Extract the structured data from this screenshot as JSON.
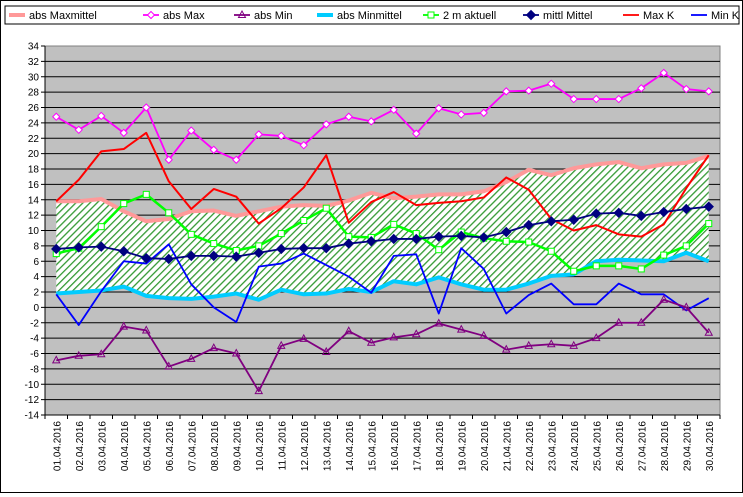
{
  "chart_data": {
    "type": "line",
    "title": "",
    "xlabel": "",
    "ylabel": "",
    "ylim": [
      -14,
      34
    ],
    "ytick_step": 2,
    "grid": true,
    "legend_position": "top",
    "plot_background": "#c0c0c0",
    "categories": [
      "01.04.2016",
      "02.04.2016",
      "03.04.2016",
      "04.04.2016",
      "05.04.2016",
      "06.04.2016",
      "07.04.2016",
      "08.04.2016",
      "09.04.2016",
      "10.04.2016",
      "11.04.2016",
      "12.04.2016",
      "13.04.2016",
      "14.04.2016",
      "15.04.2016",
      "16.04.2016",
      "17.04.2016",
      "18.04.2016",
      "19.04.2016",
      "20.04.2016",
      "21.04.2016",
      "22.04.2016",
      "23.04.2016",
      "24.04.2016",
      "25.04.2016",
      "26.04.2016",
      "27.04.2016",
      "28.04.2016",
      "29.04.2016",
      "30.04.2016"
    ],
    "series": [
      {
        "name": "abs Maxmittel",
        "color": "#ff9999",
        "style": "thick",
        "marker": "none",
        "values": [
          13.8,
          13.8,
          14.1,
          12.5,
          11.2,
          11.5,
          12.5,
          12.6,
          11.9,
          12.5,
          13.1,
          13.3,
          13.2,
          13.9,
          14.9,
          14.2,
          14.4,
          14.7,
          14.7,
          15.1,
          16.3,
          17.9,
          17.2,
          18.1,
          18.6,
          18.9,
          18.1,
          18.6,
          18.8,
          19.7
        ]
      },
      {
        "name": "abs Max",
        "color": "#ff00ff",
        "style": "line",
        "marker": "diamond-open",
        "values": [
          24.8,
          23.1,
          24.9,
          22.7,
          26.0,
          19.2,
          23.0,
          20.5,
          19.2,
          22.5,
          22.3,
          21.1,
          23.8,
          24.8,
          24.2,
          25.7,
          22.6,
          25.9,
          25.1,
          25.3,
          28.1,
          28.2,
          29.1,
          27.1,
          27.1,
          27.1,
          28.5,
          30.5,
          28.4,
          28.1
        ]
      },
      {
        "name": "abs Min",
        "color": "#800080",
        "style": "line",
        "marker": "triangle-open",
        "values": [
          -6.9,
          -6.3,
          -6.1,
          -2.5,
          -3.0,
          -7.7,
          -6.7,
          -5.3,
          -6.0,
          -10.9,
          -5.0,
          -4.1,
          -5.8,
          -3.1,
          -4.6,
          -3.9,
          -3.5,
          -2.1,
          -2.9,
          -3.7,
          -5.5,
          -5.0,
          -4.8,
          -5.0,
          -4.0,
          -2.0,
          -2.0,
          1.0,
          0.0,
          -3.3
        ]
      },
      {
        "name": "abs Minmittel",
        "color": "#00ccff",
        "style": "thick",
        "marker": "none",
        "values": [
          1.8,
          2.0,
          2.2,
          2.7,
          1.5,
          1.2,
          1.1,
          1.4,
          1.8,
          1.0,
          2.3,
          1.7,
          1.8,
          2.4,
          2.0,
          3.4,
          3.0,
          3.9,
          3.0,
          2.3,
          2.3,
          3.1,
          4.1,
          4.3,
          6.0,
          6.2,
          6.1,
          6.0,
          7.1,
          6.0
        ]
      },
      {
        "name": "2 m aktuell",
        "color": "#00ff00",
        "style": "line",
        "marker": "square-open",
        "values": [
          7.0,
          7.7,
          10.5,
          13.5,
          14.7,
          12.3,
          9.5,
          8.3,
          7.4,
          8.0,
          9.6,
          11.3,
          12.9,
          9.2,
          9.1,
          10.8,
          9.6,
          7.5,
          9.8,
          9.0,
          8.6,
          8.5,
          7.3,
          4.7,
          5.4,
          5.4,
          5.0,
          6.8,
          8.0,
          10.9
        ]
      },
      {
        "name": "mittl Mittel",
        "color": "#000080",
        "style": "line",
        "marker": "diamond-filled",
        "values": [
          7.6,
          7.8,
          7.9,
          7.3,
          6.4,
          6.3,
          6.7,
          6.7,
          6.6,
          7.1,
          7.6,
          7.7,
          7.7,
          8.3,
          8.6,
          8.9,
          8.9,
          9.2,
          9.3,
          9.1,
          9.8,
          10.7,
          11.2,
          11.4,
          12.2,
          12.3,
          11.9,
          12.4,
          12.8,
          13.1
        ]
      },
      {
        "name": "Max K",
        "color": "#ff0000",
        "style": "line",
        "marker": "none",
        "values": [
          13.8,
          16.6,
          20.3,
          20.6,
          22.7,
          16.4,
          12.8,
          15.4,
          14.4,
          10.9,
          12.9,
          15.6,
          19.8,
          11.0,
          13.7,
          15.0,
          13.3,
          13.6,
          13.8,
          14.3,
          16.9,
          15.3,
          11.5,
          10.0,
          10.7,
          9.5,
          9.2,
          10.8,
          15.5,
          19.8
        ]
      },
      {
        "name": "Min K",
        "color": "#0000ff",
        "style": "line",
        "marker": "none",
        "values": [
          1.7,
          -2.3,
          2.1,
          6.0,
          5.7,
          8.2,
          3.0,
          0.0,
          -1.9,
          5.3,
          5.7,
          7.0,
          5.5,
          4.0,
          1.9,
          6.7,
          6.9,
          -0.8,
          7.7,
          5.0,
          -0.8,
          1.6,
          3.1,
          0.4,
          0.4,
          3.1,
          1.7,
          1.7,
          -0.4,
          1.2
        ]
      }
    ],
    "band": {
      "from_series": "abs Minmittel",
      "to_series": "abs Maxmittel",
      "fill": "hatched-green"
    }
  }
}
